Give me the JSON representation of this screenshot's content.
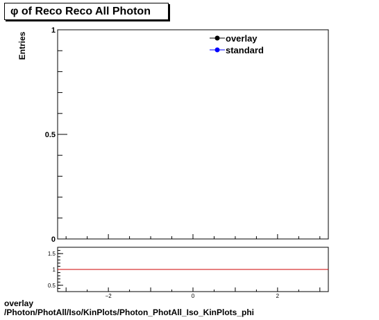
{
  "chart_data": [
    {
      "type": "line",
      "title": "φ of Reco Reco All Photon",
      "ylabel": "Entries",
      "ylim": [
        0,
        1
      ],
      "xlim": [
        -3.2,
        3.2
      ],
      "y_ticks": [
        {
          "value": 0,
          "label": "0"
        },
        {
          "value": 0.5,
          "label": "0.5"
        },
        {
          "value": 1,
          "label": "1"
        }
      ],
      "series": [
        {
          "name": "overlay",
          "color": "#000000",
          "values": []
        },
        {
          "name": "standard",
          "color": "#0000ff",
          "values": []
        }
      ],
      "legend": "top-right"
    },
    {
      "type": "line",
      "xlim": [
        -3.2,
        3.2
      ],
      "ylim": [
        0.3,
        1.7
      ],
      "x_ticks": [
        {
          "value": -2,
          "label": "−2"
        },
        {
          "value": 0,
          "label": "0"
        },
        {
          "value": 2,
          "label": "2"
        }
      ],
      "y_ticks": [
        {
          "value": 0.5,
          "label": "0.5"
        },
        {
          "value": 1,
          "label": "1"
        },
        {
          "value": 1.5,
          "label": "1.5"
        }
      ],
      "reference_line": {
        "y": 1,
        "color": "#cc0000"
      }
    }
  ],
  "footer": {
    "line1": "overlay",
    "line2": "/Photon/PhotAll/Iso/KinPlots/Photon_PhotAll_Iso_KinPlots_phi"
  }
}
